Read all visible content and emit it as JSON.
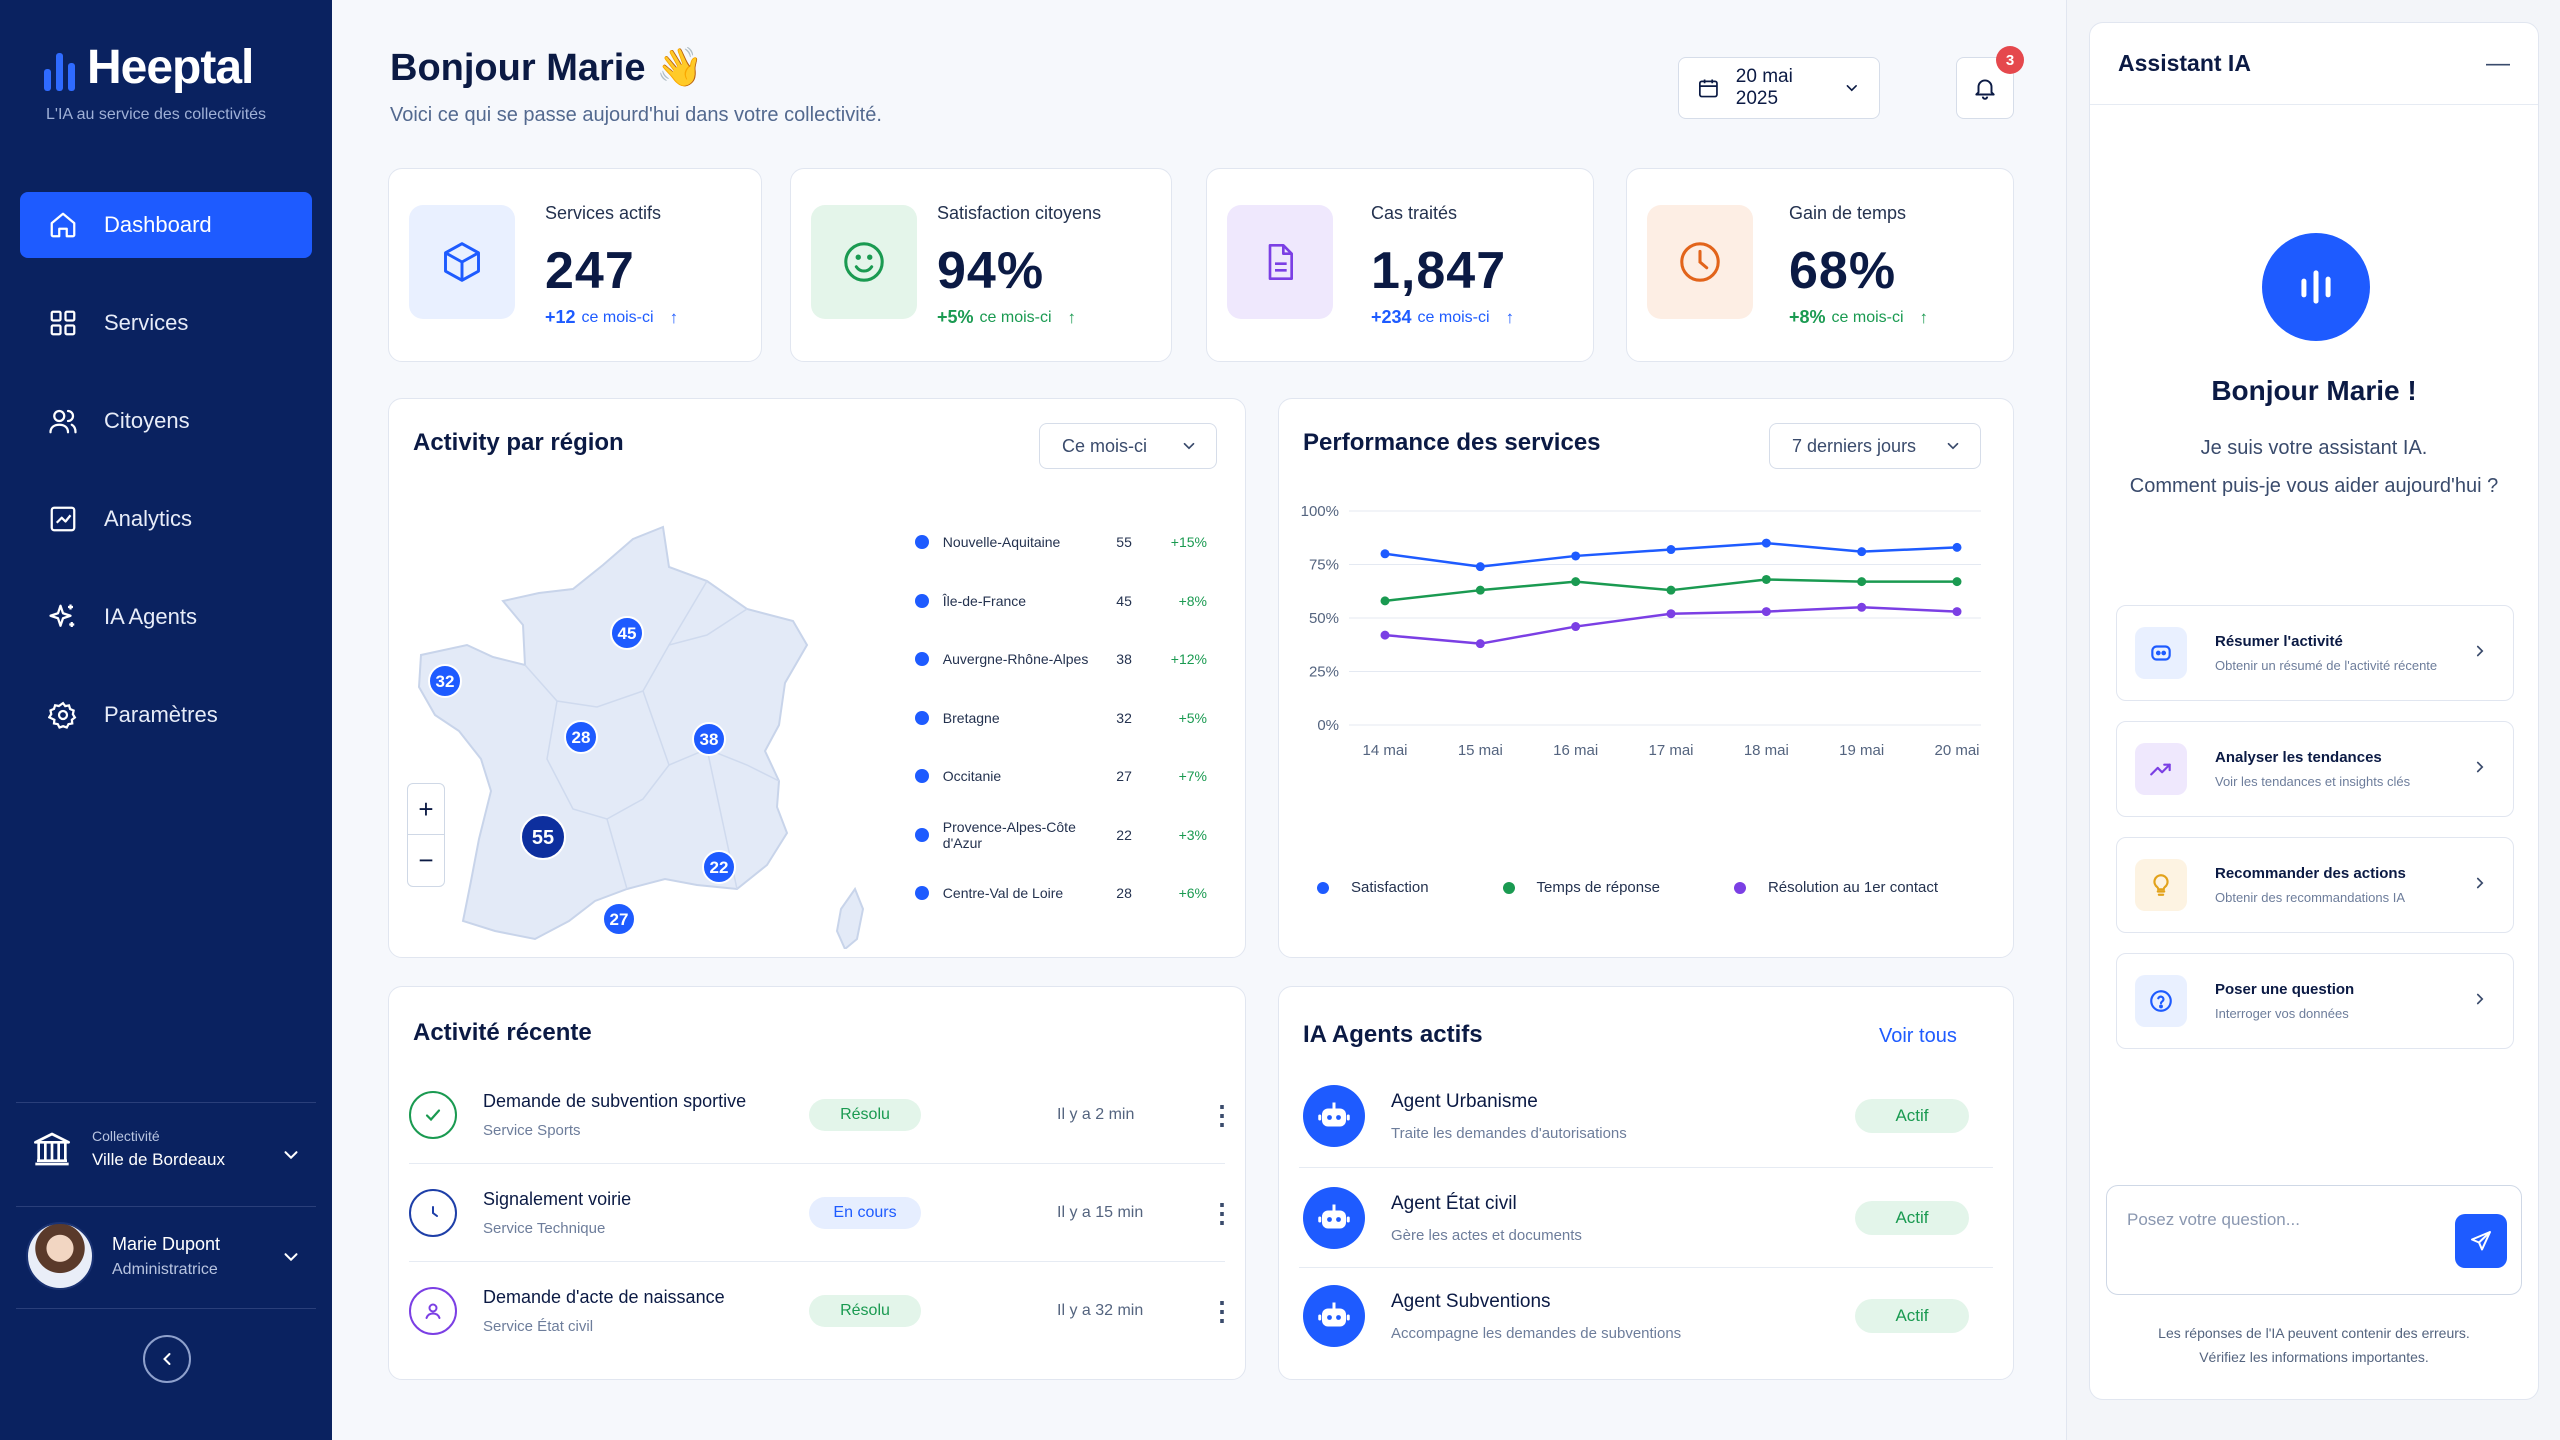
{
  "brand": {
    "name": "Heeptal",
    "tagline": "L'IA au service des collectivités"
  },
  "nav": [
    {
      "label": "Dashboard",
      "icon": "home-icon",
      "active": true
    },
    {
      "label": "Services",
      "icon": "grid-icon"
    },
    {
      "label": "Citoyens",
      "icon": "users-icon"
    },
    {
      "label": "Analytics",
      "icon": "analytics-icon"
    },
    {
      "label": "IA Agents",
      "icon": "sparkles-icon"
    },
    {
      "label": "Paramètres",
      "icon": "gear-icon"
    }
  ],
  "collectivite": {
    "label": "Collectivité",
    "name": "Ville de Bordeaux"
  },
  "user": {
    "name": "Marie Dupont",
    "role": "Administratrice"
  },
  "header": {
    "greeting": "Bonjour Marie",
    "emoji": "👋",
    "subtitle": "Voici ce qui se passe aujourd'hui dans votre collectivité.",
    "date": "20 mai 2025",
    "notifications": "3"
  },
  "stats": [
    {
      "label": "Services actifs",
      "value": "247",
      "delta": "+12",
      "delta_text": "ce mois-ci",
      "icon": "cube-icon",
      "color": "#1e5bff",
      "bg": "#e9f0ff"
    },
    {
      "label": "Satisfaction citoyens",
      "value": "94%",
      "delta": "+5%",
      "delta_text": "ce mois-ci",
      "icon": "smile-icon",
      "color": "#1a9a51",
      "bg": "#e4f5ea"
    },
    {
      "label": "Cas traités",
      "value": "1,847",
      "delta": "+234",
      "delta_text": "ce mois-ci",
      "icon": "document-icon",
      "color": "#7b3fe4",
      "bg": "#efe8fd"
    },
    {
      "label": "Gain de temps",
      "value": "68%",
      "delta": "+8%",
      "delta_text": "ce mois-ci",
      "icon": "clock-icon",
      "color": "#e2641b",
      "bg": "#fdeee4"
    }
  ],
  "region": {
    "title": "Activity par région",
    "period": "Ce mois-ci",
    "items": [
      {
        "name": "Nouvelle-Aquitaine",
        "value": "55",
        "delta": "+15%"
      },
      {
        "name": "Île-de-France",
        "value": "45",
        "delta": "+8%"
      },
      {
        "name": "Auvergne-Rhône-Alpes",
        "value": "38",
        "delta": "+12%"
      },
      {
        "name": "Bretagne",
        "value": "32",
        "delta": "+5%"
      },
      {
        "name": "Occitanie",
        "value": "27",
        "delta": "+7%"
      },
      {
        "name": "Provence-Alpes-Côte d'Azur",
        "value": "22",
        "delta": "+3%"
      },
      {
        "name": "Centre-Val de Loire",
        "value": "28",
        "delta": "+6%"
      }
    ],
    "zoom_in": "+",
    "zoom_out": "−"
  },
  "performance": {
    "title": "Performance des services",
    "period": "7 derniers jours"
  },
  "chart_data": {
    "type": "line",
    "title": "Performance des services",
    "categories": [
      "14 mai",
      "15 mai",
      "16 mai",
      "17 mai",
      "18 mai",
      "19 mai",
      "20 mai"
    ],
    "ylim": [
      0,
      100
    ],
    "yticks": [
      "0%",
      "25%",
      "50%",
      "75%",
      "100%"
    ],
    "grid": true,
    "legend": "bottom",
    "series": [
      {
        "name": "Satisfaction",
        "color": "#1e5bff",
        "values": [
          80,
          74,
          79,
          82,
          85,
          81,
          83
        ]
      },
      {
        "name": "Temps de réponse",
        "color": "#1a9a51",
        "values": [
          58,
          63,
          67,
          63,
          68,
          67,
          67
        ]
      },
      {
        "name": "Résolution au 1er contact",
        "color": "#7b3fe4",
        "values": [
          42,
          38,
          46,
          52,
          53,
          55,
          53
        ]
      }
    ]
  },
  "activity": {
    "title": "Activité récente",
    "items": [
      {
        "title": "Demande de subvention sportive",
        "service": "Service Sports",
        "status": "Résolu",
        "time": "Il y a 2 min",
        "kind": "resolved"
      },
      {
        "title": "Signalement voirie",
        "service": "Service Technique",
        "status": "En cours",
        "time": "Il y a 15 min",
        "kind": "progress"
      },
      {
        "title": "Demande d'acte de naissance",
        "service": "Service État civil",
        "status": "Résolu",
        "time": "Il y a 32 min",
        "kind": "resolved"
      }
    ]
  },
  "agents": {
    "title": "IA Agents actifs",
    "see_all": "Voir tous",
    "items": [
      {
        "name": "Agent Urbanisme",
        "desc": "Traite les demandes d'autorisations",
        "status": "Actif"
      },
      {
        "name": "Agent État civil",
        "desc": "Gère les actes et documents",
        "status": "Actif"
      },
      {
        "name": "Agent Subventions",
        "desc": "Accompagne les demandes de subventions",
        "status": "Actif"
      }
    ]
  },
  "assistant": {
    "title": "Assistant IA",
    "minimize": "—",
    "hello": "Bonjour Marie !",
    "intro1": "Je suis votre assistant IA.",
    "intro2": "Comment puis-je vous aider aujourd'hui ?",
    "actions": [
      {
        "title": "Résumer l'activité",
        "desc": "Obtenir un résumé de l'activité récente",
        "icon": "summary-icon",
        "color": "#1e5bff",
        "bg": "#e9f0ff"
      },
      {
        "title": "Analyser les tendances",
        "desc": "Voir les tendances et insights clés",
        "icon": "trend-icon",
        "color": "#7b3fe4",
        "bg": "#efe8fd"
      },
      {
        "title": "Recommander des actions",
        "desc": "Obtenir des recommandations IA",
        "icon": "lightbulb-icon",
        "color": "#e2a21b",
        "bg": "#fdf3e2"
      },
      {
        "title": "Poser une question",
        "desc": "Interroger vos données",
        "icon": "question-icon",
        "color": "#1e5bff",
        "bg": "#e9f0ff"
      }
    ],
    "placeholder": "Posez votre question...",
    "disclaimer1": "Les réponses de l'IA peuvent contenir des erreurs.",
    "disclaimer2": "Vérifiez les informations importantes."
  }
}
